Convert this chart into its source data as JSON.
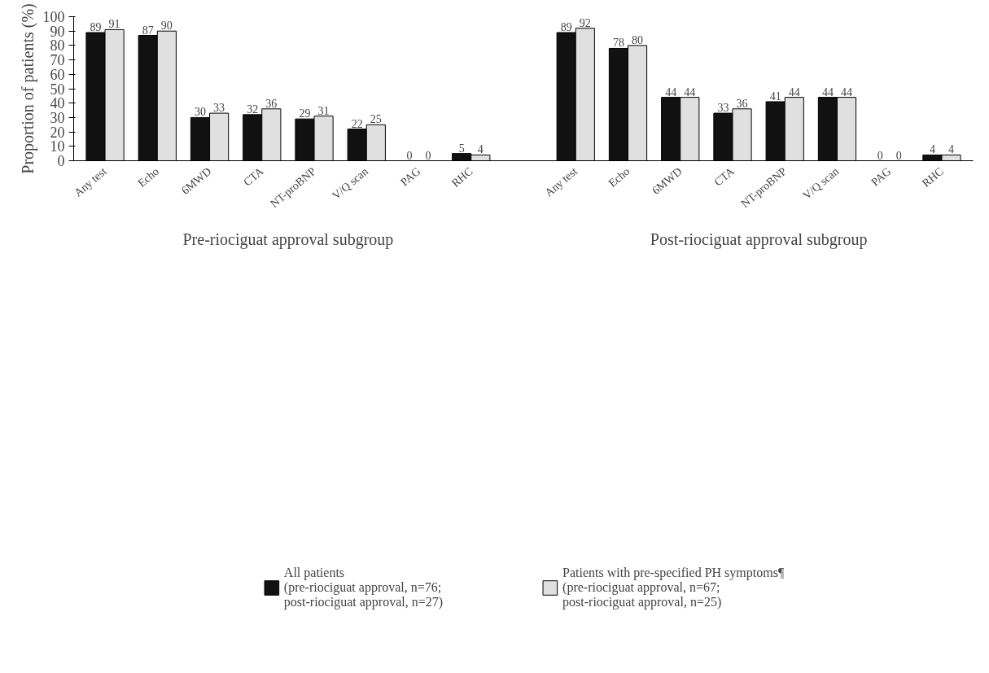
{
  "chart_data": {
    "type": "bar",
    "ylabel": "Proportion of patients (%)",
    "categories": [
      "Any test",
      "Echo",
      "6MWD",
      "CTA",
      "NT-proBNP",
      "V/Q scan",
      "PAG",
      "RHC",
      null,
      "Any test",
      "Echo",
      "6MWD",
      "CTA",
      "NT-proBNP",
      "V/Q scan",
      "PAG",
      "RHC"
    ],
    "series": [
      {
        "name": "All patients\n(pre-riociguat approval, n=76;\npost-riociguat approval, n=27)",
        "color": "#111111",
        "values": [
          89,
          87,
          30,
          32,
          29,
          22,
          0,
          5,
          null,
          89,
          78,
          44,
          33,
          41,
          44,
          0,
          4
        ]
      },
      {
        "name": "Patients with pre-specified PH symptoms¶\n(pre-riociguat approval, n=67;\npost-riociguat approval, n=25)",
        "color": "#e0e0e0",
        "values": [
          91,
          90,
          33,
          36,
          31,
          25,
          0,
          4,
          null,
          92,
          80,
          44,
          36,
          44,
          44,
          0,
          4
        ]
      }
    ],
    "ylim": [
      0,
      100
    ],
    "yticks": [
      0,
      10,
      20,
      30,
      40,
      50,
      60,
      70,
      80,
      90,
      100
    ],
    "annotations": [
      "Pre-riociguat approval subgroup",
      "Post-riociguat approval subgroup"
    ],
    "data_labels": true,
    "legend": "bottom",
    "grid": false
  }
}
